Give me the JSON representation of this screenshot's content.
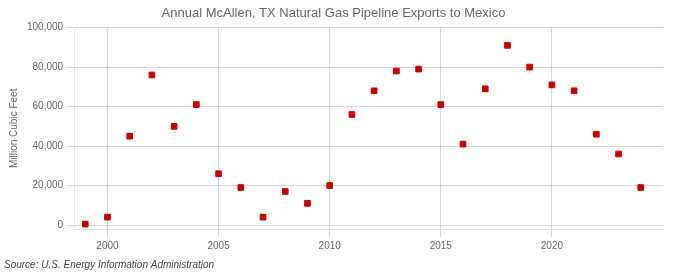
{
  "chart_data": {
    "type": "scatter",
    "title": "Annual McAllen, TX Natural Gas Pipeline Exports to Mexico",
    "ylabel": "Million Cubic Feet",
    "annotation": "Source: U.S. Energy Information Administration",
    "color": "#cc0000",
    "marker": "square",
    "grid": true,
    "xlim": [
      1998.5,
      2025
    ],
    "ylim": [
      -2000,
      100000
    ],
    "xticks": [
      2000,
      2005,
      2010,
      2015,
      2020
    ],
    "yticks": [
      0,
      {
        "value": 20000,
        "label": "20,000"
      },
      {
        "value": 40000,
        "label": "40,000"
      },
      {
        "value": 60000,
        "label": "60,000"
      },
      {
        "value": 80000,
        "label": "80,000"
      },
      {
        "value": 100000,
        "label": "100,000"
      }
    ],
    "x": [
      1999,
      2000,
      2001,
      2002,
      2003,
      2004,
      2005,
      2006,
      2007,
      2008,
      2009,
      2010,
      2011,
      2012,
      2013,
      2014,
      2015,
      2016,
      2017,
      2018,
      2019,
      2020,
      2021,
      2022,
      2023,
      2024
    ],
    "values": [
      500,
      4000,
      45000,
      76000,
      50000,
      61000,
      26000,
      19000,
      4000,
      17000,
      11000,
      20000,
      56000,
      68000,
      78000,
      79000,
      61000,
      41000,
      69000,
      91000,
      80000,
      71000,
      68000,
      46000,
      36000,
      19000
    ]
  }
}
